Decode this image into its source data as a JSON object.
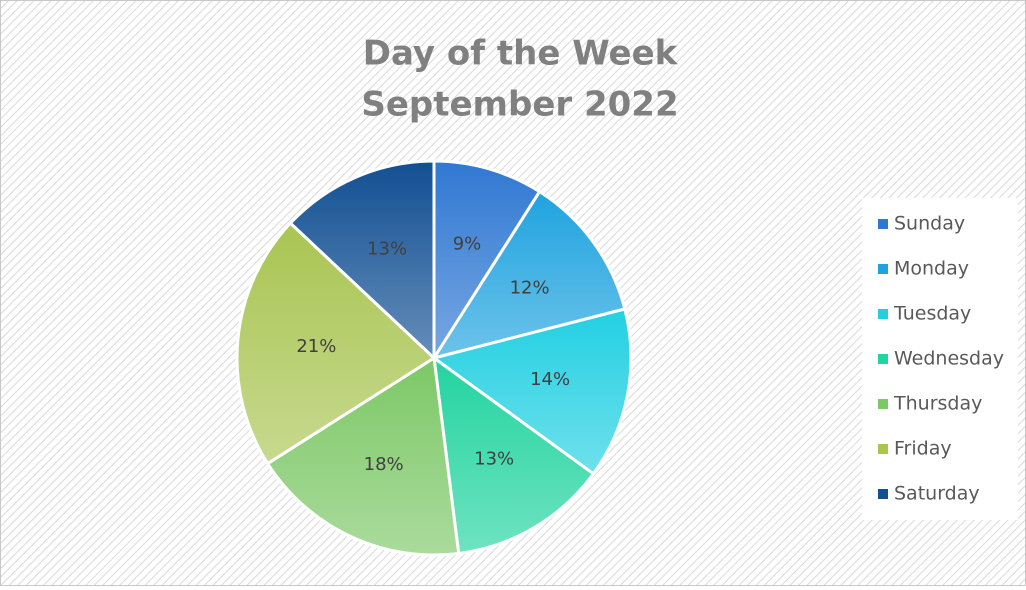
{
  "chart_data": {
    "type": "pie",
    "title": "Day of the Week",
    "subtitle": "September 2022",
    "categories": [
      "Sunday",
      "Monday",
      "Tuesday",
      "Wednesday",
      "Thursday",
      "Friday",
      "Saturday"
    ],
    "values": [
      9,
      12,
      14,
      13,
      18,
      21,
      13
    ],
    "value_labels": [
      "9%",
      "12%",
      "14%",
      "13%",
      "18%",
      "21%",
      "13%"
    ],
    "colors": [
      "#2f78d2",
      "#1fa3df",
      "#22d0e2",
      "#22d4a0",
      "#7cc866",
      "#a9c552",
      "#124f93"
    ],
    "legend": "right"
  }
}
